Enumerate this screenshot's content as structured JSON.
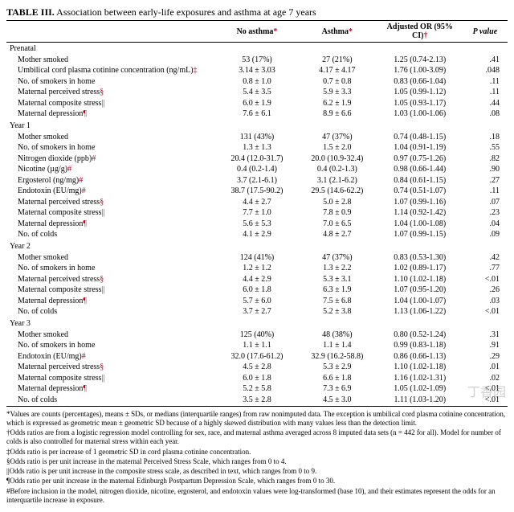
{
  "title_prefix": "TABLE III.",
  "title_rest": " Association between early-life exposures and asthma at age 7 years",
  "columns": {
    "c1": "",
    "c2": "No asthma",
    "c2_marker": "*",
    "c3": "Asthma",
    "c3_marker": "*",
    "c4": "Adjusted OR (95% CI)",
    "c4_marker": "†",
    "c5": "P value"
  },
  "markers": {
    "cotinine": "‡",
    "perceived": "§",
    "composite": "||",
    "depression": "¶",
    "logexp": "#"
  },
  "sections": [
    {
      "name": "Prenatal",
      "rows": [
        {
          "label": "Mother smoked",
          "m": "",
          "na": "53 (17%)",
          "as": "27 (21%)",
          "or": "1.25 (0.74-2.13)",
          "p": ".41"
        },
        {
          "label": "Umbilical cord plasma cotinine concentration (ng/mL)",
          "m": "cotinine",
          "na": "3.14 ± 3.03",
          "as": "4.17 ± 4.17",
          "or": "1.76 (1.00-3.09)",
          "p": ".048"
        },
        {
          "label": "No. of smokers in home",
          "m": "",
          "na": "0.8 ± 1.0",
          "as": "0.7 ± 0.8",
          "or": "0.83 (0.66-1.04)",
          "p": ".11"
        },
        {
          "label": "Maternal perceived stress",
          "m": "perceived",
          "na": "5.4 ± 3.5",
          "as": "5.9 ± 3.3",
          "or": "1.05 (0.99-1.12)",
          "p": ".11"
        },
        {
          "label": "Maternal composite stress",
          "m": "composite",
          "na": "6.0 ± 1.9",
          "as": "6.2 ± 1.9",
          "or": "1.05 (0.93-1.17)",
          "p": ".44"
        },
        {
          "label": "Maternal depression",
          "m": "depression",
          "na": "7.6 ± 6.1",
          "as": "8.9 ± 6.6",
          "or": "1.03 (1.00-1.06)",
          "p": ".08"
        }
      ]
    },
    {
      "name": "Year 1",
      "rows": [
        {
          "label": "Mother smoked",
          "m": "",
          "na": "131 (43%)",
          "as": "47 (37%)",
          "or": "0.74 (0.48-1.15)",
          "p": ".18"
        },
        {
          "label": "No. of smokers in home",
          "m": "",
          "na": "1.3 ± 1.3",
          "as": "1.5 ± 2.0",
          "or": "1.04 (0.91-1.19)",
          "p": ".55"
        },
        {
          "label": "Nitrogen dioxide (ppb)",
          "m": "logexp",
          "na": "20.4 (12.0-31.7)",
          "as": "20.0 (10.9-32.4)",
          "or": "0.97 (0.75-1.26)",
          "p": ".82"
        },
        {
          "label": "Nicotine (µg/g)",
          "m": "logexp",
          "na": "0.4 (0.2-1.4)",
          "as": "0.4 (0.2-1.3)",
          "or": "0.98 (0.66-1.44)",
          "p": ".90"
        },
        {
          "label": "Ergosterol (ng/mg)",
          "m": "logexp",
          "na": "3.7 (2.1-6.1)",
          "as": "3.1 (2.1-6.2)",
          "or": "0.84 (0.61-1.15)",
          "p": ".27"
        },
        {
          "label": "Endotoxin (EU/mg)",
          "m": "logexp",
          "na": "38.7 (17.5-90.2)",
          "as": "29.5 (14.6-62.2)",
          "or": "0.74 (0.51-1.07)",
          "p": ".11"
        },
        {
          "label": "Maternal perceived stress",
          "m": "perceived",
          "na": "4.4 ± 2.7",
          "as": "5.0 ± 2.8",
          "or": "1.07 (0.99-1.16)",
          "p": ".07"
        },
        {
          "label": "Maternal composite stress",
          "m": "composite",
          "na": "7.7 ± 1.0",
          "as": "7.8 ± 0.9",
          "or": "1.14 (0.92-1.42)",
          "p": ".23"
        },
        {
          "label": "Maternal depression",
          "m": "depression",
          "na": "5.6 ± 5.3",
          "as": "7.0 ± 6.5",
          "or": "1.04 (1.00-1.08)",
          "p": ".04"
        },
        {
          "label": "No. of colds",
          "m": "",
          "na": "4.1 ± 2.9",
          "as": "4.8 ± 2.7",
          "or": "1.07 (0.99-1.15)",
          "p": ".09"
        }
      ]
    },
    {
      "name": "Year 2",
      "rows": [
        {
          "label": "Mother smoked",
          "m": "",
          "na": "124 (41%)",
          "as": "47 (37%)",
          "or": "0.83 (0.53-1.30)",
          "p": ".42"
        },
        {
          "label": "No. of smokers in home",
          "m": "",
          "na": "1.2 ± 1.2",
          "as": "1.3 ± 2.2",
          "or": "1.02 (0.89-1.17)",
          "p": ".77"
        },
        {
          "label": "Maternal perceived stress",
          "m": "perceived",
          "na": "4.4 ± 2.9",
          "as": "5.3 ± 3.1",
          "or": "1.10 (1.02-1.18)",
          "p": "<.01"
        },
        {
          "label": "Maternal composite stress",
          "m": "composite",
          "na": "6.0 ± 1.8",
          "as": "6.3 ± 1.9",
          "or": "1.07 (0.95-1.20)",
          "p": ".26"
        },
        {
          "label": "Maternal depression",
          "m": "depression",
          "na": "5.7 ± 6.0",
          "as": "7.5 ± 6.8",
          "or": "1.04 (1.00-1.07)",
          "p": ".03"
        },
        {
          "label": "No. of colds",
          "m": "",
          "na": "3.7 ± 2.7",
          "as": "5.2 ± 3.8",
          "or": "1.13 (1.06-1.22)",
          "p": "<.01"
        }
      ]
    },
    {
      "name": "Year 3",
      "rows": [
        {
          "label": "Mother smoked",
          "m": "",
          "na": "125 (40%)",
          "as": "48 (38%)",
          "or": "0.80 (0.52-1.24)",
          "p": ".31"
        },
        {
          "label": "No. of smokers in home",
          "m": "",
          "na": "1.1 ± 1.1",
          "as": "1.1 ± 1.4",
          "or": "0.99 (0.83-1.18)",
          "p": ".91"
        },
        {
          "label": "Endotoxin (EU/mg)",
          "m": "logexp",
          "na": "32.0 (17.6-61.2)",
          "as": "32.9 (16.2-58.8)",
          "or": "0.86 (0.66-1.13)",
          "p": ".29"
        },
        {
          "label": "Maternal perceived stress",
          "m": "perceived",
          "na": "4.5 ± 2.8",
          "as": "5.3 ± 2.9",
          "or": "1.10 (1.02-1.18)",
          "p": ".01"
        },
        {
          "label": "Maternal composite stress",
          "m": "composite",
          "na": "6.0 ± 1.8",
          "as": "6.6 ± 1.8",
          "or": "1.16 (1.02-1.31)",
          "p": ".02"
        },
        {
          "label": "Maternal depression",
          "m": "depression",
          "na": "5.2 ± 5.8",
          "as": "7.3 ± 6.9",
          "or": "1.05 (1.02-1.09)",
          "p": "<.01"
        },
        {
          "label": "No. of colds",
          "m": "",
          "na": "3.5 ± 2.8",
          "as": "4.5 ± 3.0",
          "or": "1.11 (1.03-1.20)",
          "p": "<.01"
        }
      ]
    }
  ],
  "footnotes": [
    {
      "sym": "*",
      "text": "Values are counts (percentages), means ± SDs, or medians (interquartile ranges) from raw nonimputed data. The exception is umbilical cord plasma cotinine concentration, which is expressed as geometric mean ± geometric SD because of a highly skewed distribution with many values less than the detection limit."
    },
    {
      "sym": "†",
      "text": "Odds ratios are from a logistic regression model controlling for sex, race, and maternal asthma averaged across 8 imputed data sets (n = 442 for all). Model for number of colds is also controlled for maternal stress within each year."
    },
    {
      "sym": "‡",
      "text": "Odds ratio is per increase of 1 geometric SD in cord plasma cotinine concentration."
    },
    {
      "sym": "§",
      "text": "Odds ratio is per unit increase in the maternal Perceived Stress Scale, which ranges from 0 to 4."
    },
    {
      "sym": "||",
      "text": "Odds ratio is per unit increase in the composite stress scale, as described in text, which ranges from 0 to 9."
    },
    {
      "sym": "¶",
      "text": "Odds ratio per unit increase in the maternal Edinburgh Postpartum Depression Scale, which ranges from 0 to 30."
    },
    {
      "sym": "#",
      "text": "Before inclusion in the model, nitrogen dioxide, nicotine, ergosterol, and endotoxin values were log-transformed (base 10), and their estimates represent the odds for an interquartile increase in exposure."
    }
  ],
  "watermark": "丁香园"
}
